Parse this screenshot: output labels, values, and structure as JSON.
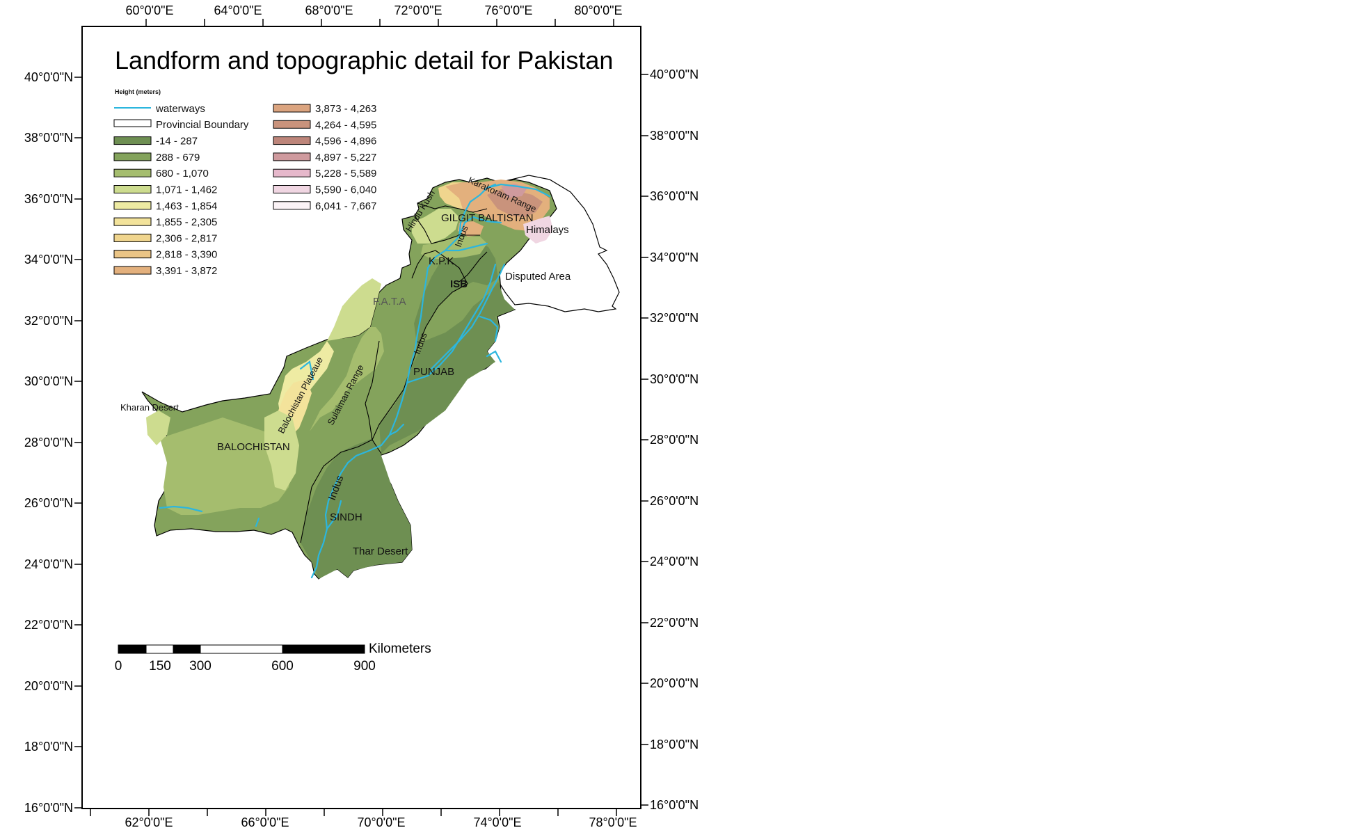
{
  "map": {
    "title": "Landform and topographic detail for Pakistan",
    "lon_ticks_top": [
      "60°0'0\"E",
      "64°0'0\"E",
      "68°0'0\"E",
      "72°0'0\"E",
      "76°0'0\"E",
      "80°0'0\"E"
    ],
    "lon_ticks_bottom": [
      "62°0'0\"E",
      "66°0'0\"E",
      "70°0'0\"E",
      "74°0'0\"E",
      "78°0'0\"E"
    ],
    "lat_ticks": [
      "40°0'0\"N",
      "38°0'0\"N",
      "36°0'0\"N",
      "34°0'0\"N",
      "32°0'0\"N",
      "30°0'0\"N",
      "28°0'0\"N",
      "26°0'0\"N",
      "24°0'0\"N",
      "22°0'0\"N",
      "20°0'0\"N",
      "18°0'0\"N",
      "16°0'0\"N"
    ],
    "legend": {
      "heading": "Height (meters)",
      "waterways": "waterways",
      "provincial_boundary": "Provincial Boundary",
      "classes": [
        {
          "label": "-14 - 287",
          "color": "#6e8f52"
        },
        {
          "label": "288 - 679",
          "color": "#84a35c"
        },
        {
          "label": "680 - 1,070",
          "color": "#a5bd6e"
        },
        {
          "label": "1,071 - 1,462",
          "color": "#cddc8f"
        },
        {
          "label": "1,463 - 1,854",
          "color": "#eeeba3"
        },
        {
          "label": "1,855 - 2,305",
          "color": "#f3e39b"
        },
        {
          "label": "2,306 - 2,817",
          "color": "#f0d58e"
        },
        {
          "label": "2,818 - 3,390",
          "color": "#ebc586"
        },
        {
          "label": "3,391 - 3,872",
          "color": "#e3b07d"
        },
        {
          "label": "3,873 - 4,263",
          "color": "#dba47f"
        },
        {
          "label": "4,264 - 4,595",
          "color": "#c9937c"
        },
        {
          "label": "4,596 - 4,896",
          "color": "#bd857a"
        },
        {
          "label": "4,897 - 5,227",
          "color": "#cf9a9e"
        },
        {
          "label": "5,228 - 5,589",
          "color": "#e6b8cb"
        },
        {
          "label": "5,590 - 6,040",
          "color": "#f0d6e2"
        },
        {
          "label": "6,041 - 7,667",
          "color": "#fbf3f6"
        }
      ],
      "waterway_color": "#2cb6de"
    },
    "places": {
      "kharan_desert": "Kharan Desert",
      "balochistan": "BALOCHISTAN",
      "balochistan_plateaue": "Balochistan Plateaue",
      "sulaiman_range": "Sulaiman Range",
      "punjab": "PUNJAB",
      "sindh": "SINDH",
      "thar_desert": "Thar Desert",
      "indus_south": "Indus",
      "indus_mid": "Indus",
      "indus_north": "Indus",
      "fata": "F.A.T.A",
      "kpk": "K.P.K",
      "isb": "ISB",
      "gilgit_baltistan": "GILGIT BALTISTAN",
      "hindu_kush": "Hindu Kush",
      "karakoram_range": "Karakoram Range",
      "himalays": "Himalays",
      "disputed_area": "Disputed Area"
    },
    "scale_bar": {
      "unit": "Kilometers",
      "labels": [
        "0",
        "150",
        "300",
        "600",
        "900"
      ]
    }
  }
}
